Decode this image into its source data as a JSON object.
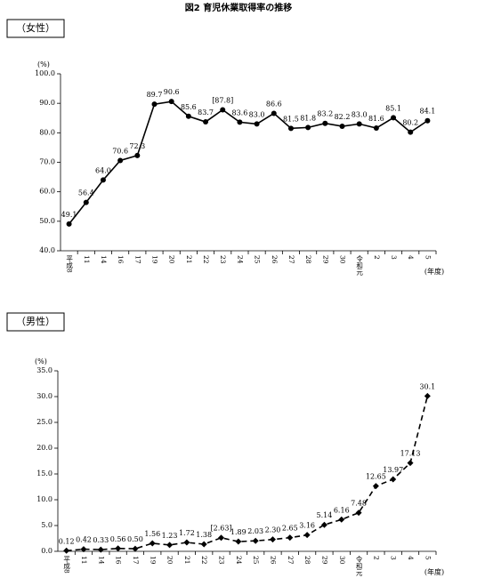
{
  "title": "図2 育児休業取得率の推移",
  "chart_data": [
    {
      "type": "line",
      "title": "（女性）",
      "y_unit": "(%)",
      "x_unit": "(年度)",
      "categories": [
        "平成8",
        "11",
        "14",
        "16",
        "17",
        "19",
        "20",
        "21",
        "22",
        "23",
        "24",
        "25",
        "26",
        "27",
        "28",
        "29",
        "30",
        "令和元",
        "2",
        "3",
        "4",
        "5"
      ],
      "values": [
        49.1,
        56.4,
        64.0,
        70.6,
        72.3,
        89.7,
        90.6,
        85.6,
        83.7,
        87.8,
        83.6,
        83.0,
        86.6,
        81.5,
        81.8,
        83.2,
        82.2,
        83.0,
        81.6,
        85.1,
        80.2,
        84.1
      ],
      "value_labels": [
        "49.1",
        "56.4",
        "64.0",
        "70.6",
        "72.3",
        "89.7",
        "90.6",
        "85.6",
        "83.7",
        "[87.8]",
        "83.6",
        "83.0",
        "86.6",
        "81.5",
        "81.8",
        "83.2",
        "82.2",
        "83.0",
        "81.6",
        "85.1",
        "80.2",
        "84.1"
      ],
      "color": "#000000",
      "line_style": "solid",
      "marker": "circle",
      "ylim": [
        40,
        100
      ],
      "yticks": [
        {
          "value": 40,
          "label": "40.0"
        },
        {
          "value": 50,
          "label": "50.0"
        },
        {
          "value": 60,
          "label": "60.0"
        },
        {
          "value": 70,
          "label": "70.0"
        },
        {
          "value": 80,
          "label": "80.0"
        },
        {
          "value": 90,
          "label": "90.0"
        },
        {
          "value": 100,
          "label": "100.0"
        }
      ]
    },
    {
      "type": "line",
      "title": "（男性）",
      "y_unit": "(%)",
      "x_unit": "(年度)",
      "categories": [
        "平成8",
        "11",
        "14",
        "16",
        "17",
        "19",
        "20",
        "21",
        "22",
        "23",
        "24",
        "25",
        "26",
        "27",
        "28",
        "29",
        "30",
        "令和元",
        "2",
        "3",
        "4",
        "5"
      ],
      "values": [
        0.12,
        0.42,
        0.33,
        0.56,
        0.5,
        1.56,
        1.23,
        1.72,
        1.38,
        2.63,
        1.89,
        2.03,
        2.3,
        2.65,
        3.16,
        5.14,
        6.16,
        7.48,
        12.65,
        13.97,
        17.13,
        30.1
      ],
      "value_labels": [
        "0.12",
        "0.42",
        "0.33",
        "0.56",
        "0.50",
        "1.56",
        "1.23",
        "1.72",
        "1.38",
        "[2.63]",
        "1.89",
        "2.03",
        "2.30",
        "2.65",
        "3.16",
        "5.14",
        "6.16",
        "7.48",
        "12.65",
        "13.97",
        "17.13",
        "30.1"
      ],
      "color": "#000000",
      "line_style": "dashed",
      "marker": "diamond",
      "ylim": [
        0,
        35
      ],
      "yticks": [
        {
          "value": 0,
          "label": "0.0"
        },
        {
          "value": 5,
          "label": "5.0"
        },
        {
          "value": 10,
          "label": "10.0"
        },
        {
          "value": 15,
          "label": "15.0"
        },
        {
          "value": 20,
          "label": "20.0"
        },
        {
          "value": 25,
          "label": "25.0"
        },
        {
          "value": 30,
          "label": "30.0"
        },
        {
          "value": 35,
          "label": "35.0"
        }
      ]
    }
  ]
}
